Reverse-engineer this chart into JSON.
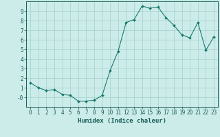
{
  "x": [
    0,
    1,
    2,
    3,
    4,
    5,
    6,
    7,
    8,
    9,
    10,
    11,
    12,
    13,
    14,
    15,
    16,
    17,
    18,
    19,
    20,
    21,
    22,
    23
  ],
  "y": [
    1.5,
    1.0,
    0.7,
    0.8,
    0.3,
    0.2,
    -0.4,
    -0.4,
    -0.3,
    0.2,
    2.8,
    4.8,
    7.8,
    8.1,
    9.5,
    9.3,
    9.4,
    8.3,
    7.5,
    6.5,
    6.2,
    7.8,
    4.9,
    6.3
  ],
  "line_color": "#1a7a6e",
  "marker": "D",
  "marker_size": 2.0,
  "bg_color": "#ccecea",
  "grid_color": "#aad4d0",
  "xlabel": "Humidex (Indice chaleur)",
  "xlim": [
    -0.5,
    23.5
  ],
  "ylim": [
    -1.0,
    10.0
  ],
  "yticks": [
    0,
    1,
    2,
    3,
    4,
    5,
    6,
    7,
    8,
    9
  ],
  "ytick_labels": [
    "-0",
    "1",
    "2",
    "3",
    "4",
    "5",
    "6",
    "7",
    "8",
    "9"
  ],
  "xtick_labels": [
    "0",
    "1",
    "2",
    "3",
    "4",
    "5",
    "6",
    "7",
    "8",
    "9",
    "10",
    "11",
    "12",
    "13",
    "14",
    "15",
    "16",
    "17",
    "18",
    "19",
    "20",
    "21",
    "22",
    "23"
  ],
  "tick_color": "#1a5c55",
  "axis_color": "#1a5c55",
  "tick_fontsize": 5.5,
  "xlabel_fontsize": 6.5
}
